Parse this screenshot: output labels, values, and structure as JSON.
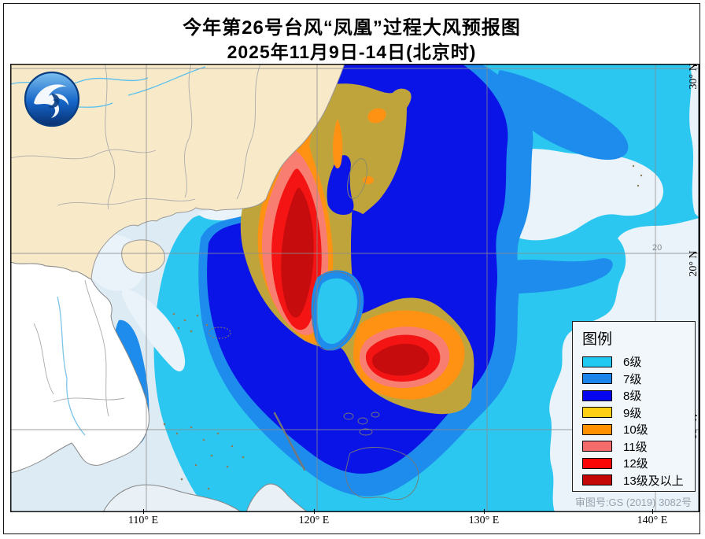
{
  "title": {
    "line1": "今年第26号台风“凤凰”过程大风预报图",
    "line2": "2025年11月9日-14日(北京时)"
  },
  "legend": {
    "title": "图例",
    "items": [
      {
        "label": "6级",
        "color": "#1FC9F2"
      },
      {
        "label": "7级",
        "color": "#1B84EA"
      },
      {
        "label": "8级",
        "color": "#0505F0"
      },
      {
        "label": "9级",
        "color": "#FFD013"
      },
      {
        "label": "10级",
        "color": "#FF9000"
      },
      {
        "label": "11级",
        "color": "#F56B6B"
      },
      {
        "label": "12级",
        "color": "#FA0606"
      },
      {
        "label": "13级及以上",
        "color": "#C40808"
      }
    ]
  },
  "axes": {
    "x_labels": [
      "110° E",
      "120° E",
      "130° E",
      "140° E"
    ],
    "y_labels": [
      "30° N",
      "20° N",
      "10° N"
    ],
    "inner_label": "20"
  },
  "footer": {
    "review_number": "审图号:GS (2019) 3082号"
  },
  "logo": {
    "name": "china-meteorological-logo"
  },
  "map": {
    "palette": {
      "sea": "#DDEBF5",
      "pale": "#EAF3FA",
      "lv6": "#2BC7F0",
      "lv7": "#1E8CEC",
      "lv8": "#0A14E6",
      "lv9": "#BFA43C",
      "lv10": "#FF9212",
      "lv11": "#F87E72",
      "lv12": "#F51414",
      "lv13": "#C60C0C",
      "land": "#F8E9C8",
      "land2": "#FFFFFF",
      "border": "#999999",
      "grid": "#8C8C8C"
    }
  }
}
